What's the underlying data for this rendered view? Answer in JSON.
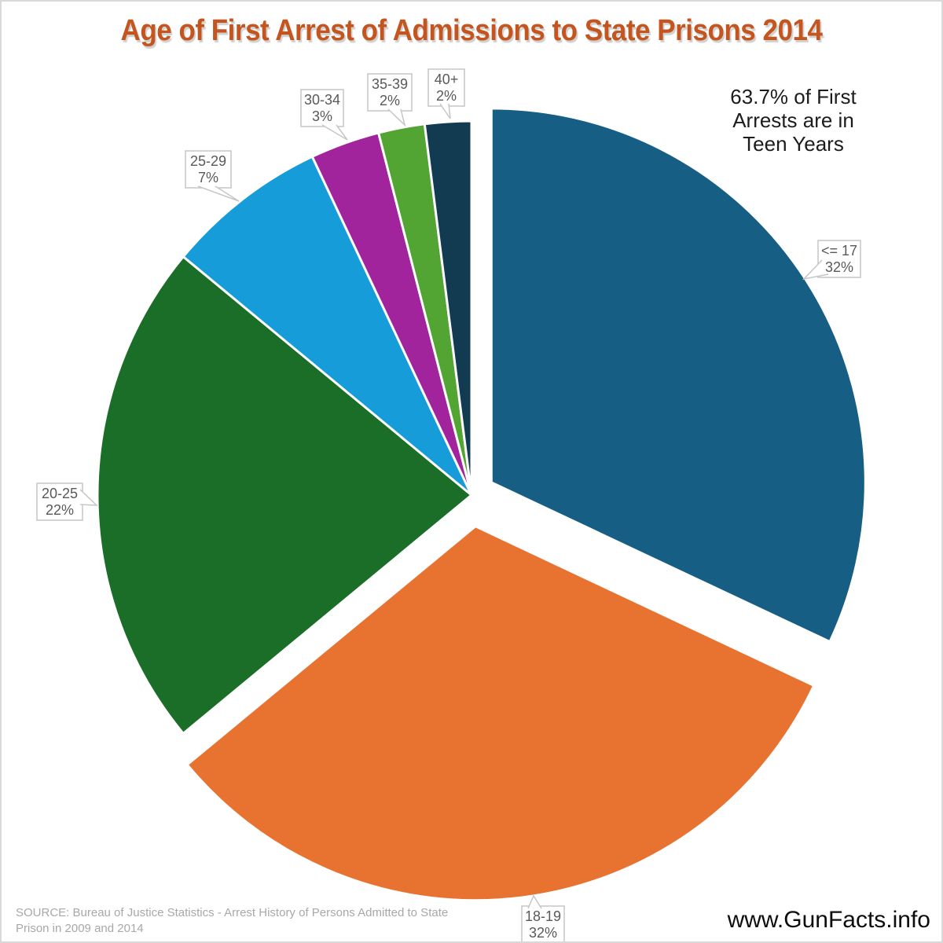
{
  "title": "Age of First Arrest of Admissions to State Prisons 2014",
  "annotation": {
    "lines": [
      "63.7% of First",
      "Arrests are in",
      "Teen Years"
    ]
  },
  "source": {
    "lines": [
      "SOURCE: Bureau of Justice Statistics - Arrest History of Persons Admitted to State",
      "Prison in 2009 and 2014"
    ]
  },
  "website": "www.GunFacts.info",
  "colors": {
    "title_text": "#c4551e",
    "annotation_text": "#1c1c1c",
    "callout_text": "#595959",
    "callout_border": "#c6c6c6",
    "source_text": "#a8a8a8",
    "website_text": "#0d0d0d",
    "slice_separator": "#ffffff",
    "background": "#ffffff"
  },
  "chart_data": {
    "type": "pie",
    "title": "Age of First Arrest of Admissions to State Prisons 2014",
    "unit": "percent",
    "start_angle_deg": 0,
    "direction": "clockwise",
    "legend": "none",
    "slices": [
      {
        "id": "le17",
        "label": "<= 17",
        "value": 32,
        "pct_label": "32%",
        "color": "#175e85",
        "explode": 30
      },
      {
        "id": "18-19",
        "label": "18-19",
        "value": 32,
        "pct_label": "32%",
        "color": "#e87230",
        "explode": 40
      },
      {
        "id": "20-25",
        "label": "20-25",
        "value": 22,
        "pct_label": "22%",
        "color": "#1b6e28",
        "explode": 0
      },
      {
        "id": "25-29",
        "label": "25-29",
        "value": 7,
        "pct_label": "7%",
        "color": "#169cd8",
        "explode": 0
      },
      {
        "id": "30-34",
        "label": "30-34",
        "value": 3,
        "pct_label": "3%",
        "color": "#a2249c",
        "explode": 0
      },
      {
        "id": "35-39",
        "label": "35-39",
        "value": 2,
        "pct_label": "2%",
        "color": "#52a433",
        "explode": 0
      },
      {
        "id": "40plus",
        "label": "40+",
        "value": 2,
        "pct_label": "2%",
        "color": "#123a50",
        "explode": 0
      }
    ]
  }
}
